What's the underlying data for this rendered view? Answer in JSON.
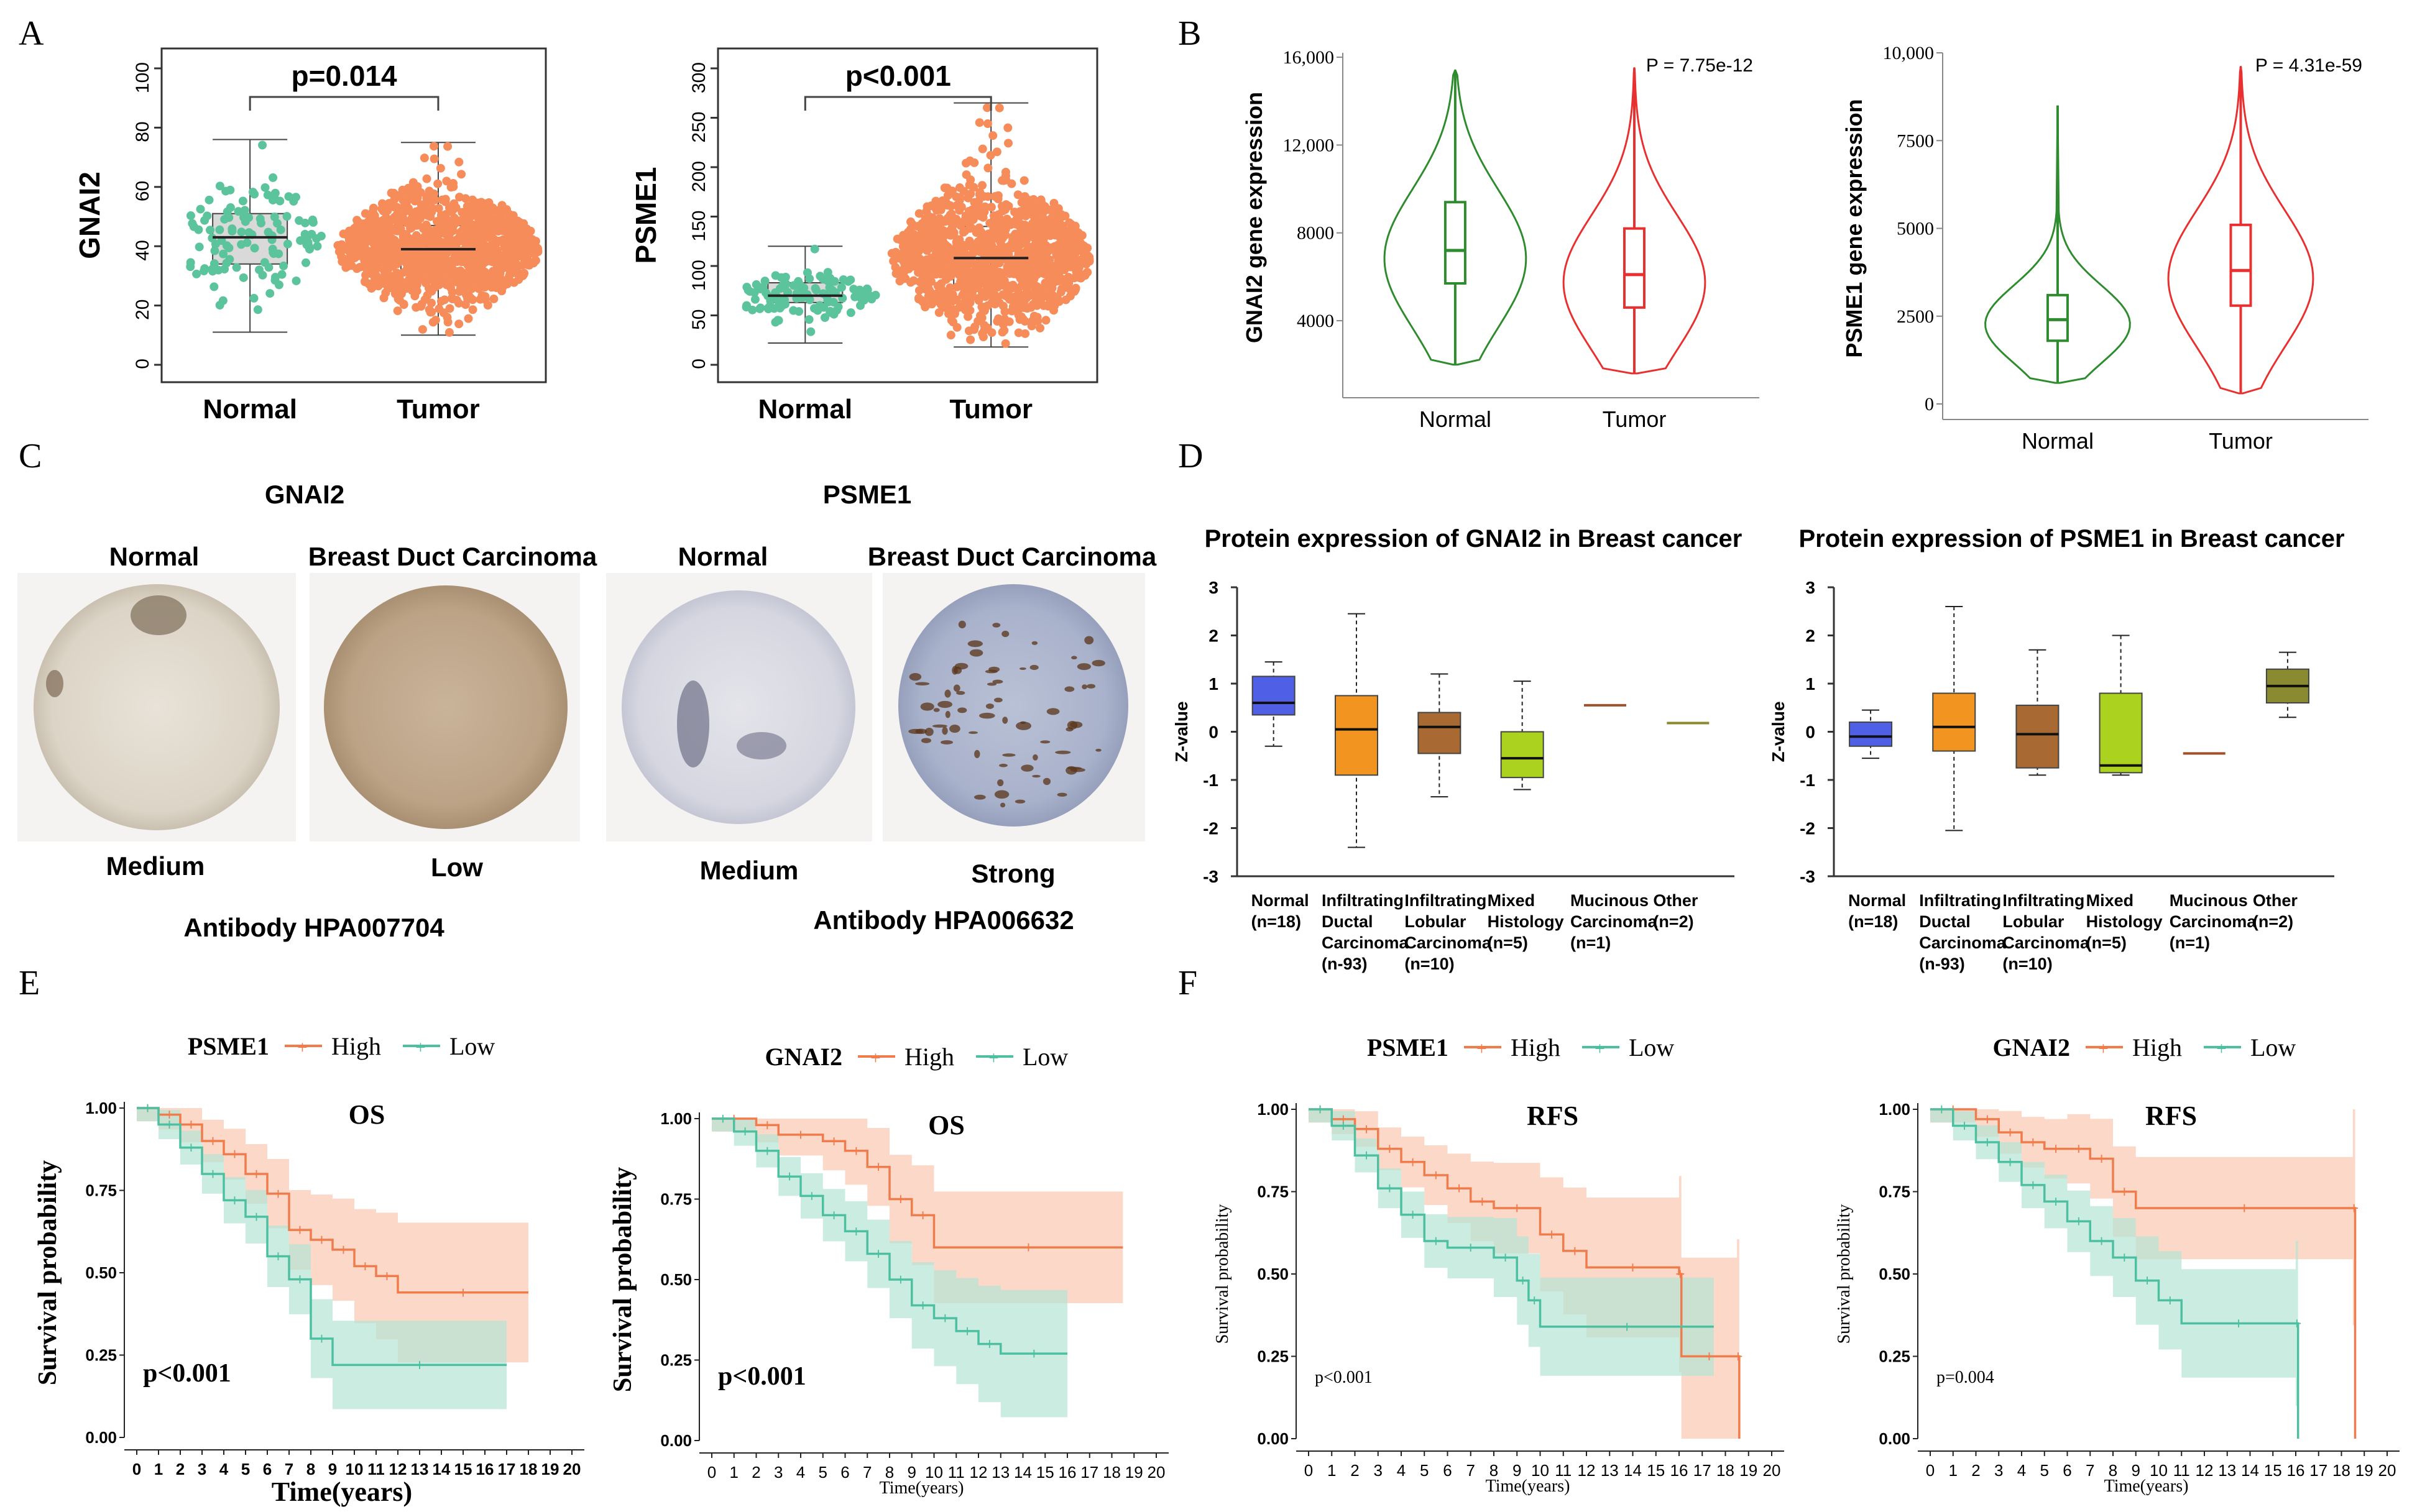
{
  "panel_labels": [
    "A",
    "B",
    "C",
    "D",
    "E",
    "F"
  ],
  "colors": {
    "normal_green": "#5cc49c",
    "tumor_orange": "#f58c5a",
    "violin_green": "#2e8b2e",
    "violin_red": "#e83030",
    "km_high": "#f07c4c",
    "km_low": "#4cc0a0",
    "km_high_band": "#f9c7b0",
    "km_low_band": "#b5e6d4",
    "box_gray": "#d9d9d9"
  },
  "chart_data": [
    {
      "id": "A1",
      "type": "box-scatter",
      "ylabel": "GNAI2",
      "pvalue": "p=0.014",
      "categories": [
        "Normal",
        "Tumor"
      ],
      "yticks": [
        "0",
        "20",
        "40",
        "60",
        "80",
        "100"
      ],
      "ylim": [
        0,
        100
      ],
      "boxes": [
        {
          "name": "Normal",
          "min": 11,
          "q1": 34,
          "median": 43,
          "q3": 51,
          "max": 76,
          "n_points": 113
        },
        {
          "name": "Tumor",
          "min": 10,
          "q1": 31,
          "median": 39,
          "q3": 47,
          "max": 75,
          "n_points": 1100
        }
      ]
    },
    {
      "id": "A2",
      "type": "box-scatter",
      "ylabel": "PSME1",
      "pvalue": "p<0.001",
      "categories": [
        "Normal",
        "Tumor"
      ],
      "yticks": [
        "0",
        "50",
        "100",
        "150",
        "200",
        "250",
        "300"
      ],
      "ylim": [
        0,
        300
      ],
      "boxes": [
        {
          "name": "Normal",
          "min": 22,
          "q1": 63,
          "median": 70,
          "q3": 83,
          "max": 120,
          "n_points": 113
        },
        {
          "name": "Tumor",
          "min": 18,
          "q1": 80,
          "median": 108,
          "q3": 140,
          "max": 265,
          "n_points": 1100
        }
      ]
    },
    {
      "id": "B1",
      "type": "violin",
      "ylabel": "GNAI2 gene expression",
      "pvalue": "P = 7.75e-12",
      "categories": [
        "Normal",
        "Tumor"
      ],
      "yticks": [
        "4000",
        "8000",
        "12,000",
        "16,000"
      ],
      "ylim": [
        1200,
        16200
      ],
      "violins": [
        {
          "name": "Normal",
          "min": 2000,
          "q1": 5700,
          "median": 7200,
          "q3": 9400,
          "max": 15400
        },
        {
          "name": "Tumor",
          "min": 1600,
          "q1": 4600,
          "median": 6100,
          "q3": 8200,
          "max": 15500
        }
      ]
    },
    {
      "id": "B2",
      "type": "violin",
      "ylabel": "PSME1 gene expression",
      "pvalue": "P = 4.31e-59",
      "categories": [
        "Normal",
        "Tumor"
      ],
      "yticks": [
        "0",
        "2500",
        "5000",
        "7500",
        "10,000"
      ],
      "ylim": [
        0,
        10000
      ],
      "violins": [
        {
          "name": "Normal",
          "min": 600,
          "q1": 1800,
          "median": 2400,
          "q3": 3100,
          "max": 8500
        },
        {
          "name": "Tumor",
          "min": 300,
          "q1": 2800,
          "median": 3800,
          "q3": 5100,
          "max": 9600
        }
      ]
    },
    {
      "id": "D1",
      "type": "box",
      "title": "Protein expression of GNAI2 in Breast cancer",
      "ylabel": "Z-value",
      "yticks": [
        "-3",
        "-2",
        "-1",
        "0",
        "1",
        "2",
        "3"
      ],
      "ylim": [
        -3,
        3
      ],
      "categories": [
        [
          "Normal",
          "(n=18)"
        ],
        [
          "Infiltrating",
          "Ductal",
          "Carcinoma",
          "(n-93)"
        ],
        [
          "Infiltrating",
          "Lobular",
          "Carcinoma",
          "(n=10)"
        ],
        [
          "Mixed",
          "Histology",
          "(n=5)"
        ],
        [
          "Mucinous",
          "Carcinoma",
          "(n=1)"
        ],
        [
          "Other",
          "(n=2)"
        ]
      ],
      "boxes": [
        {
          "min": -0.3,
          "q1": 0.35,
          "median": 0.6,
          "q3": 1.15,
          "max": 1.45,
          "color": "#4f5fe6"
        },
        {
          "min": -2.4,
          "q1": -0.9,
          "median": 0.05,
          "q3": 0.75,
          "max": 2.45,
          "color": "#f29420"
        },
        {
          "min": -1.35,
          "q1": -0.45,
          "median": 0.1,
          "q3": 0.4,
          "max": 1.2,
          "color": "#a86a32"
        },
        {
          "min": -1.2,
          "q1": -0.95,
          "median": -0.55,
          "q3": 0.0,
          "max": 1.05,
          "color": "#aad21e"
        },
        {
          "min": 0.55,
          "q1": 0.55,
          "median": 0.55,
          "q3": 0.55,
          "max": 0.55,
          "color": "#a0522d"
        },
        {
          "min": 0.18,
          "q1": 0.18,
          "median": 0.18,
          "q3": 0.18,
          "max": 0.18,
          "color": "#8a8a30"
        }
      ]
    },
    {
      "id": "D2",
      "type": "box",
      "title": "Protein expression of PSME1 in Breast cancer",
      "ylabel": "Z-value",
      "yticks": [
        "-3",
        "-2",
        "-1",
        "0",
        "1",
        "2",
        "3"
      ],
      "ylim": [
        -3,
        3
      ],
      "categories": [
        [
          "Normal",
          "(n=18)"
        ],
        [
          "Infiltrating",
          "Ductal",
          "Carcinoma",
          "(n-93)"
        ],
        [
          "Infiltrating",
          "Lobular",
          "Carcinoma",
          "(n=10)"
        ],
        [
          "Mixed",
          "Histology",
          "(n=5)"
        ],
        [
          "Mucinous",
          "Carcinoma",
          "(n=1)"
        ],
        [
          "Other",
          "(n=2)"
        ]
      ],
      "boxes": [
        {
          "min": -0.55,
          "q1": -0.3,
          "median": -0.1,
          "q3": 0.2,
          "max": 0.45,
          "color": "#4f5fe6"
        },
        {
          "min": -2.05,
          "q1": -0.4,
          "median": 0.1,
          "q3": 0.8,
          "max": 2.6,
          "color": "#f29420"
        },
        {
          "min": -0.9,
          "q1": -0.75,
          "median": -0.05,
          "q3": 0.55,
          "max": 1.7,
          "color": "#a86a32"
        },
        {
          "min": -0.9,
          "q1": -0.85,
          "median": -0.7,
          "q3": 0.8,
          "max": 2.0,
          "color": "#aad21e"
        },
        {
          "min": -0.45,
          "q1": -0.45,
          "median": -0.45,
          "q3": -0.45,
          "max": -0.45,
          "color": "#a0522d"
        },
        {
          "min": 0.3,
          "q1": 0.6,
          "median": 0.95,
          "q3": 1.3,
          "max": 1.65,
          "color": "#8a8a30"
        }
      ]
    },
    {
      "id": "E1",
      "type": "km",
      "gene": "PSME1",
      "title": "OS",
      "pvalue": "p<0.001",
      "ylabel": "Survival probability",
      "xlabel": "Time(years)",
      "legend": [
        "High",
        "Low"
      ],
      "xmax": 20,
      "yticks": [
        "0.00",
        "0.25",
        "0.50",
        "0.75",
        "1.00"
      ],
      "high": [
        [
          0,
          1
        ],
        [
          1,
          0.98
        ],
        [
          2,
          0.95
        ],
        [
          3,
          0.9
        ],
        [
          4,
          0.86
        ],
        [
          5,
          0.8
        ],
        [
          6,
          0.74
        ],
        [
          7,
          0.63
        ],
        [
          8,
          0.6
        ],
        [
          9,
          0.57
        ],
        [
          10,
          0.52
        ],
        [
          11,
          0.49
        ],
        [
          12,
          0.44
        ],
        [
          18,
          0.44
        ]
      ],
      "low": [
        [
          0,
          1
        ],
        [
          1,
          0.95
        ],
        [
          2,
          0.88
        ],
        [
          3,
          0.8
        ],
        [
          4,
          0.72
        ],
        [
          5,
          0.67
        ],
        [
          6,
          0.55
        ],
        [
          7,
          0.48
        ],
        [
          8,
          0.3
        ],
        [
          9,
          0.22
        ],
        [
          17,
          0.22
        ]
      ]
    },
    {
      "id": "E2",
      "type": "km",
      "gene": "GNAI2",
      "title": "OS",
      "pvalue": "p<0.001",
      "ylabel": "Survival probability",
      "xlabel": "Time(years)",
      "legend": [
        "High",
        "Low"
      ],
      "xmax": 20,
      "yticks": [
        "0.00",
        "0.25",
        "0.50",
        "0.75",
        "1.00"
      ],
      "high": [
        [
          0,
          1
        ],
        [
          2,
          0.98
        ],
        [
          3,
          0.95
        ],
        [
          5,
          0.93
        ],
        [
          6,
          0.9
        ],
        [
          7,
          0.85
        ],
        [
          8,
          0.75
        ],
        [
          9,
          0.7
        ],
        [
          10,
          0.6
        ],
        [
          18.5,
          0.6
        ]
      ],
      "low": [
        [
          0,
          1
        ],
        [
          1,
          0.96
        ],
        [
          2,
          0.9
        ],
        [
          3,
          0.82
        ],
        [
          4,
          0.76
        ],
        [
          5,
          0.7
        ],
        [
          6,
          0.65
        ],
        [
          7,
          0.58
        ],
        [
          8,
          0.5
        ],
        [
          9,
          0.42
        ],
        [
          10,
          0.38
        ],
        [
          11,
          0.34
        ],
        [
          12,
          0.3
        ],
        [
          13,
          0.27
        ],
        [
          16,
          0.27
        ]
      ]
    },
    {
      "id": "F1",
      "type": "km",
      "gene": "PSME1",
      "title": "RFS",
      "pvalue": "p<0.001",
      "ylabel": "Survival probability",
      "xlabel": "Time(years)",
      "legend": [
        "High",
        "Low"
      ],
      "xmax": 20,
      "yticks": [
        "0.00",
        "0.25",
        "0.50",
        "0.75",
        "1.00"
      ],
      "high": [
        [
          0,
          1
        ],
        [
          1,
          0.97
        ],
        [
          2,
          0.94
        ],
        [
          3,
          0.88
        ],
        [
          4,
          0.84
        ],
        [
          5,
          0.8
        ],
        [
          6,
          0.76
        ],
        [
          7,
          0.72
        ],
        [
          8,
          0.7
        ],
        [
          10,
          0.62
        ],
        [
          11,
          0.57
        ],
        [
          12,
          0.52
        ],
        [
          16,
          0.5
        ],
        [
          16.1,
          0.25
        ],
        [
          18.5,
          0.25
        ],
        [
          18.6,
          0.0
        ]
      ],
      "low": [
        [
          0,
          1
        ],
        [
          1,
          0.95
        ],
        [
          2,
          0.86
        ],
        [
          3,
          0.76
        ],
        [
          4,
          0.68
        ],
        [
          5,
          0.6
        ],
        [
          6,
          0.58
        ],
        [
          8,
          0.55
        ],
        [
          9,
          0.48
        ],
        [
          9.5,
          0.42
        ],
        [
          10,
          0.34
        ],
        [
          17.5,
          0.34
        ]
      ]
    },
    {
      "id": "F2",
      "type": "km",
      "gene": "GNAI2",
      "title": "RFS",
      "pvalue": "p=0.004",
      "ylabel": "Survival probability",
      "xlabel": "Time(years)",
      "legend": [
        "High",
        "Low"
      ],
      "xmax": 20,
      "yticks": [
        "0.00",
        "0.25",
        "0.50",
        "0.75",
        "1.00"
      ],
      "high": [
        [
          0,
          1
        ],
        [
          2,
          0.97
        ],
        [
          3,
          0.93
        ],
        [
          4,
          0.9
        ],
        [
          5,
          0.88
        ],
        [
          6,
          0.88
        ],
        [
          7,
          0.85
        ],
        [
          8,
          0.75
        ],
        [
          9,
          0.7
        ],
        [
          18.5,
          0.7
        ],
        [
          18.6,
          0.0
        ]
      ],
      "low": [
        [
          0,
          1
        ],
        [
          1,
          0.95
        ],
        [
          2,
          0.9
        ],
        [
          3,
          0.84
        ],
        [
          4,
          0.77
        ],
        [
          5,
          0.72
        ],
        [
          6,
          0.66
        ],
        [
          7,
          0.6
        ],
        [
          8,
          0.55
        ],
        [
          9,
          0.48
        ],
        [
          10,
          0.42
        ],
        [
          11,
          0.35
        ],
        [
          16,
          0.35
        ],
        [
          16.1,
          0.0
        ]
      ]
    }
  ],
  "ihc": {
    "gnai2_title": "GNAI2",
    "psme1_title": "PSME1",
    "normal_label": "Normal",
    "carcinoma_label": "Breast Duct Carcinoma",
    "gnai2_normal_level": "Medium",
    "gnai2_tumor_level": "Low",
    "psme1_normal_level": "Medium",
    "psme1_tumor_level": "Strong",
    "gnai2_antibody": "Antibody HPA007704",
    "psme1_antibody": "Antibody HPA006632"
  }
}
